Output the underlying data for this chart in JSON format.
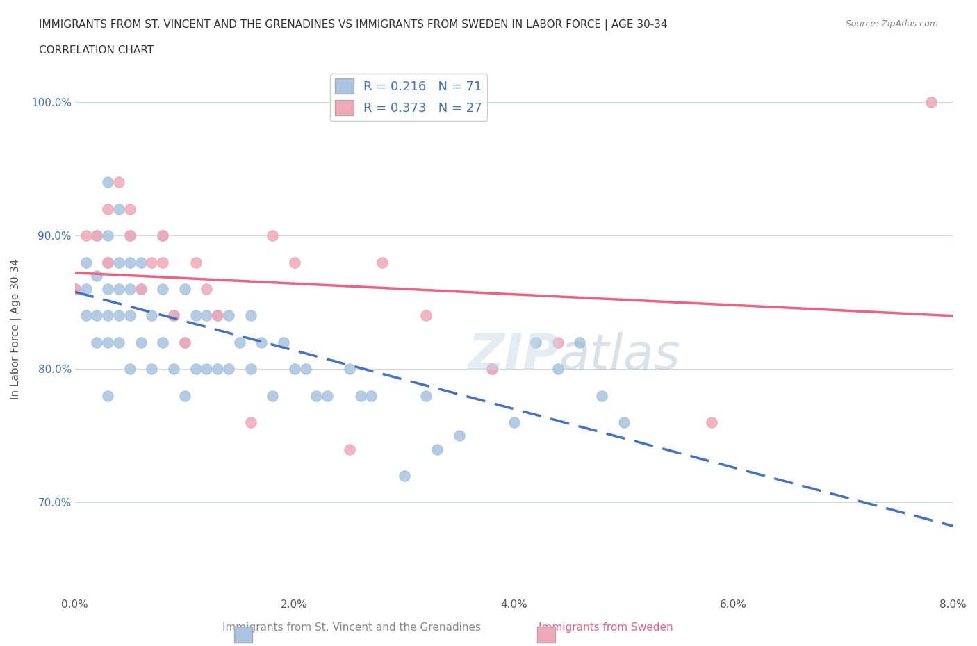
{
  "title_line1": "IMMIGRANTS FROM ST. VINCENT AND THE GRENADINES VS IMMIGRANTS FROM SWEDEN IN LABOR FORCE | AGE 30-34",
  "title_line2": "CORRELATION CHART",
  "source_text": "Source: ZipAtlas.com",
  "xlabel": "Immigrants from St. Vincent and the Grenadines",
  "ylabel": "In Labor Force | Age 30-34",
  "xlim": [
    0.0,
    0.08
  ],
  "ylim": [
    0.63,
    1.02
  ],
  "xticks": [
    0.0,
    0.02,
    0.04,
    0.06,
    0.08
  ],
  "xtick_labels": [
    "0.0%",
    "2.0%",
    "4.0%",
    "6.0%",
    "8.0%"
  ],
  "yticks": [
    0.7,
    0.8,
    0.9,
    1.0
  ],
  "ytick_labels": [
    "70.0%",
    "80.0%",
    "90.0%",
    "100.0%"
  ],
  "blue_R": 0.216,
  "blue_N": 71,
  "pink_R": 0.373,
  "pink_N": 27,
  "blue_color": "#a8c4e0",
  "pink_color": "#f0a8b8",
  "blue_line_color": "#4472c4",
  "pink_line_color": "#f06080",
  "grid_color": "#d0d8e8",
  "watermark": "ZIPatlas",
  "blue_points_x": [
    0.0,
    0.001,
    0.001,
    0.001,
    0.002,
    0.002,
    0.002,
    0.002,
    0.003,
    0.003,
    0.003,
    0.003,
    0.003,
    0.003,
    0.003,
    0.003,
    0.004,
    0.004,
    0.004,
    0.004,
    0.004,
    0.005,
    0.005,
    0.005,
    0.005,
    0.005,
    0.006,
    0.006,
    0.006,
    0.007,
    0.007,
    0.008,
    0.008,
    0.008,
    0.009,
    0.009,
    0.01,
    0.01,
    0.01,
    0.011,
    0.011,
    0.012,
    0.012,
    0.013,
    0.013,
    0.014,
    0.014,
    0.015,
    0.016,
    0.016,
    0.017,
    0.018,
    0.019,
    0.02,
    0.021,
    0.022,
    0.023,
    0.025,
    0.026,
    0.027,
    0.03,
    0.032,
    0.033,
    0.035,
    0.038,
    0.04,
    0.042,
    0.044,
    0.046,
    0.048,
    0.05
  ],
  "blue_points_y": [
    0.86,
    0.84,
    0.86,
    0.88,
    0.82,
    0.84,
    0.87,
    0.9,
    0.78,
    0.82,
    0.84,
    0.86,
    0.88,
    0.88,
    0.9,
    0.94,
    0.82,
    0.84,
    0.86,
    0.88,
    0.92,
    0.8,
    0.84,
    0.86,
    0.88,
    0.9,
    0.82,
    0.86,
    0.88,
    0.8,
    0.84,
    0.82,
    0.86,
    0.9,
    0.8,
    0.84,
    0.78,
    0.82,
    0.86,
    0.8,
    0.84,
    0.8,
    0.84,
    0.8,
    0.84,
    0.8,
    0.84,
    0.82,
    0.8,
    0.84,
    0.82,
    0.78,
    0.82,
    0.8,
    0.8,
    0.78,
    0.78,
    0.8,
    0.78,
    0.78,
    0.72,
    0.78,
    0.74,
    0.75,
    0.8,
    0.76,
    0.82,
    0.8,
    0.82,
    0.78,
    0.76
  ],
  "pink_points_x": [
    0.0,
    0.001,
    0.002,
    0.003,
    0.003,
    0.004,
    0.005,
    0.005,
    0.006,
    0.007,
    0.008,
    0.008,
    0.009,
    0.01,
    0.011,
    0.012,
    0.013,
    0.016,
    0.018,
    0.02,
    0.025,
    0.028,
    0.032,
    0.038,
    0.044,
    0.058,
    0.078
  ],
  "pink_points_y": [
    0.86,
    0.9,
    0.9,
    0.88,
    0.92,
    0.94,
    0.9,
    0.92,
    0.86,
    0.88,
    0.88,
    0.9,
    0.84,
    0.82,
    0.88,
    0.86,
    0.84,
    0.76,
    0.9,
    0.88,
    0.74,
    0.88,
    0.84,
    0.8,
    0.82,
    0.76,
    1.0
  ]
}
